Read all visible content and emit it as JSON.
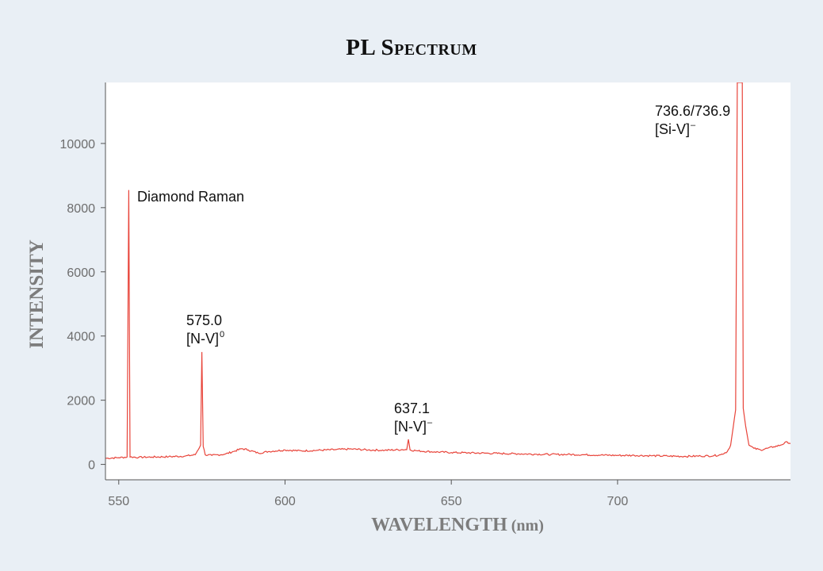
{
  "chart_data": {
    "type": "line",
    "title": "PL Spectrum",
    "xlabel": "WAVELENGTH (nm)",
    "ylabel": "INTENSITY",
    "xlim": [
      546,
      752
    ],
    "ylim": [
      -480,
      11900
    ],
    "x_ticks": [
      550,
      600,
      650,
      700
    ],
    "y_ticks": [
      0,
      2000,
      4000,
      6000,
      8000,
      10000
    ],
    "grid": false,
    "line_color": "#e8443a",
    "series": [
      {
        "values": [
          [
            546,
            190
          ],
          [
            550,
            210
          ],
          [
            552.5,
            230
          ],
          [
            553.0,
            8550
          ],
          [
            553.4,
            230
          ],
          [
            556,
            220
          ],
          [
            560,
            230
          ],
          [
            565,
            240
          ],
          [
            570,
            260
          ],
          [
            573,
            300
          ],
          [
            574.6,
            600
          ],
          [
            575.0,
            3500
          ],
          [
            575.4,
            560
          ],
          [
            576,
            300
          ],
          [
            578,
            280
          ],
          [
            582,
            320
          ],
          [
            585,
            420
          ],
          [
            587,
            490
          ],
          [
            589,
            450
          ],
          [
            592,
            350
          ],
          [
            595,
            400
          ],
          [
            600,
            450
          ],
          [
            605,
            420
          ],
          [
            610,
            440
          ],
          [
            615,
            460
          ],
          [
            620,
            480
          ],
          [
            625,
            450
          ],
          [
            630,
            440
          ],
          [
            635,
            460
          ],
          [
            636.6,
            460
          ],
          [
            637.1,
            780
          ],
          [
            637.6,
            450
          ],
          [
            640,
            420
          ],
          [
            645,
            390
          ],
          [
            650,
            370
          ],
          [
            655,
            360
          ],
          [
            660,
            350
          ],
          [
            665,
            340
          ],
          [
            670,
            330
          ],
          [
            675,
            320
          ],
          [
            680,
            310
          ],
          [
            685,
            310
          ],
          [
            690,
            300
          ],
          [
            695,
            290
          ],
          [
            700,
            280
          ],
          [
            705,
            280
          ],
          [
            710,
            270
          ],
          [
            715,
            260
          ],
          [
            720,
            250
          ],
          [
            725,
            260
          ],
          [
            729,
            270
          ],
          [
            731,
            300
          ],
          [
            733,
            400
          ],
          [
            734,
            600
          ],
          [
            735.5,
            1700
          ],
          [
            736.0,
            11900
          ],
          [
            737.5,
            11900
          ],
          [
            737.8,
            1750
          ],
          [
            738.5,
            1200
          ],
          [
            739.5,
            600
          ],
          [
            741,
            500
          ],
          [
            743,
            450
          ],
          [
            745,
            500
          ],
          [
            747,
            550
          ],
          [
            749,
            600
          ],
          [
            751,
            700
          ],
          [
            752,
            650
          ]
        ]
      }
    ],
    "annotations": [
      {
        "lines": [
          "Diamond Raman"
        ],
        "sup": ""
      },
      {
        "lines": [
          "575.0",
          "[N-V]"
        ],
        "sup": "0"
      },
      {
        "lines": [
          "637.1",
          "[N-V]"
        ],
        "sup": "–"
      },
      {
        "lines": [
          "736.6/736.9",
          "[Si-V]"
        ],
        "sup": "–"
      }
    ]
  }
}
